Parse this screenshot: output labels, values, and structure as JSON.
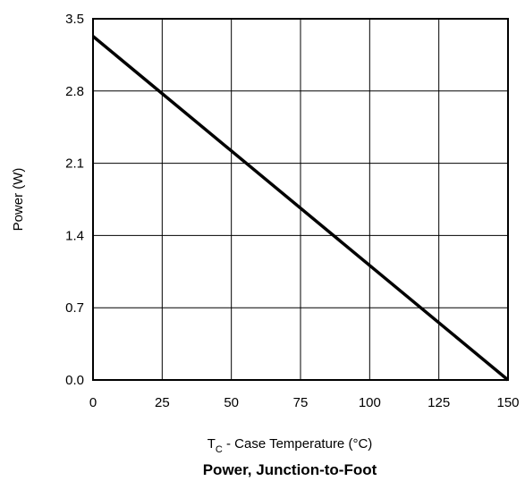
{
  "chart_data": {
    "type": "line",
    "title": "Power, Junction-to-Foot",
    "xlabel": {
      "prefix": "T",
      "subscript": "C",
      "suffix": " - Case Temperature (°C)"
    },
    "ylabel": "Power (W)",
    "xlim": [
      0,
      150
    ],
    "ylim": [
      0,
      3.5
    ],
    "xticks": [
      0,
      25,
      50,
      75,
      100,
      125,
      150
    ],
    "xtick_labels": [
      "0",
      "25",
      "50",
      "75",
      "100",
      "125",
      "150"
    ],
    "yticks": [
      0,
      0.7,
      1.4,
      2.1,
      2.8,
      3.5
    ],
    "ytick_labels": [
      "0.0",
      "0.7",
      "1.4",
      "2.1",
      "2.8",
      "3.5"
    ],
    "grid": true,
    "series": [
      {
        "x": [
          0,
          150
        ],
        "y": [
          3.33,
          0.0
        ]
      }
    ],
    "colors": {
      "line": "#000000",
      "grid": "#000000",
      "background": "#ffffff"
    }
  }
}
